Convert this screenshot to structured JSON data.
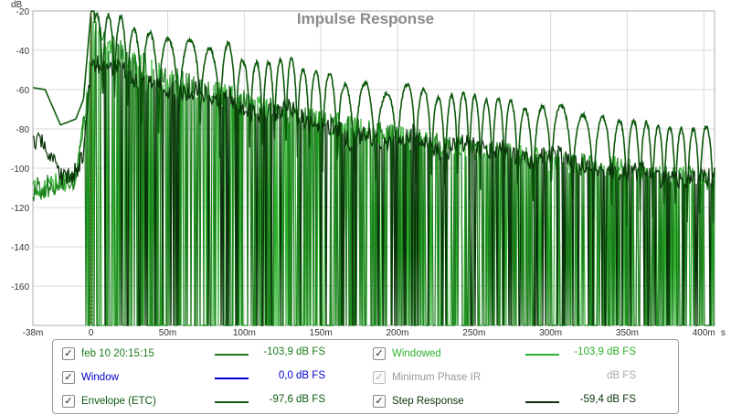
{
  "chart_data": {
    "type": "line",
    "title": "Impulse Response",
    "ylabel": "dB",
    "xlabel": "s",
    "xlim": [
      -38,
      407
    ],
    "ylim": [
      -180,
      -20
    ],
    "grid": true,
    "x_ticks": [
      "-38m",
      "0",
      "50m",
      "100m",
      "150m",
      "200m",
      "250m",
      "300m",
      "350m",
      "400m"
    ],
    "x_tick_values": [
      -38,
      0,
      50,
      100,
      150,
      200,
      250,
      300,
      350,
      400
    ],
    "x_unit_label": "s",
    "y_ticks": [
      "-20",
      "-40",
      "-60",
      "-80",
      "-100",
      "-120",
      "-140",
      "-160"
    ],
    "y_tick_values": [
      -20,
      -40,
      -60,
      -80,
      -100,
      -120,
      -140,
      -160
    ],
    "legend_position": "bottom",
    "series": [
      {
        "name": "feb 10 20:15:15",
        "color": "#1e7d1e",
        "value_label": "-103,9 dB FS",
        "checked": true
      },
      {
        "name": "Windowed",
        "color": "#2db22d",
        "value_label": "-103,9 dB FS",
        "checked": true
      },
      {
        "name": "Window",
        "color": "#0000cc",
        "value_label": "0,0 dB FS",
        "checked": true
      },
      {
        "name": "Minimum Phase IR",
        "color": "#aaaaaa",
        "value_label": "dB FS",
        "checked": false
      },
      {
        "name": "Envelope (ETC)",
        "color": "#0d5a0d",
        "value_label": "-97,6 dB FS",
        "checked": true
      },
      {
        "name": "Step Response",
        "color": "#0a320a",
        "value_label": "-59,4 dB FS",
        "checked": true
      }
    ],
    "etc_envelope_ms": [
      -38,
      -30,
      -20,
      -10,
      -5,
      0,
      10,
      20,
      30,
      40,
      50,
      60,
      70,
      80,
      90,
      100,
      110,
      120,
      130,
      140,
      150,
      160,
      170,
      180,
      190,
      200,
      210,
      220,
      230,
      240,
      250,
      260,
      270,
      280,
      290,
      300,
      310,
      320,
      330,
      340,
      350,
      360,
      370,
      380,
      390,
      400,
      405
    ],
    "etc_envelope_db": [
      -59,
      -60,
      -78,
      -75,
      -65,
      -20,
      -21,
      -22,
      -30,
      -30,
      -33,
      -35,
      -32,
      -40,
      -35,
      -45,
      -45,
      -45,
      -42,
      -50,
      -50,
      -52,
      -60,
      -55,
      -62,
      -58,
      -55,
      -60,
      -65,
      -60,
      -62,
      -65,
      -62,
      -68,
      -70,
      -65,
      -68,
      -72,
      -72,
      -75,
      -75,
      -75,
      -78,
      -78,
      -80,
      -78,
      -77
    ],
    "impulse_envelope_ms": [
      -38,
      -10,
      -3,
      0,
      10,
      30,
      60,
      100,
      150,
      200,
      250,
      300,
      350,
      405
    ],
    "impulse_envelope_db": [
      -105,
      -100,
      -60,
      -22,
      -30,
      -40,
      -50,
      -60,
      -70,
      -78,
      -85,
      -90,
      -95,
      -100
    ]
  }
}
